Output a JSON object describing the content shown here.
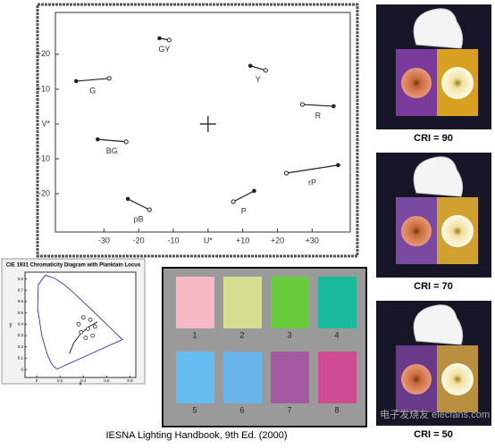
{
  "chart_data": [
    {
      "type": "vector",
      "xlim": [
        -44,
        41
      ],
      "ylim": [
        -31,
        32
      ],
      "xticks": [
        -30,
        -20,
        -10,
        {
          "value": 0,
          "label": "U*"
        },
        {
          "value": 10,
          "label": "+10"
        },
        {
          "value": 20,
          "label": "+20"
        },
        {
          "value": 30,
          "label": "+30"
        }
      ],
      "yticks": [
        -20,
        -10,
        {
          "value": 0,
          "label": "V*"
        },
        {
          "value": 10,
          "label": "+10"
        },
        {
          "value": 20,
          "label": "+20"
        }
      ],
      "vectors": [
        {
          "label": "GY",
          "x": [
            -14,
            -11.2
          ],
          "y": [
            24.6,
            24.1
          ]
        },
        {
          "label": "Y",
          "x": [
            12.2,
            16.6
          ],
          "y": [
            16.7,
            15.4
          ]
        },
        {
          "label": "G",
          "x": [
            -38,
            -28.5
          ],
          "y": [
            12.3,
            13.1
          ]
        },
        {
          "label": "R",
          "x": [
            36.2,
            27.2
          ],
          "y": [
            5.1,
            5.6
          ]
        },
        {
          "label": "BG",
          "x": [
            -31.8,
            -23.6
          ],
          "y": [
            -4.4,
            -5.1
          ]
        },
        {
          "label": "rP",
          "x": [
            37.5,
            22.6
          ],
          "y": [
            -11.8,
            -14.1
          ]
        },
        {
          "label": "pB",
          "x": [
            -23.1,
            -16.9
          ],
          "y": [
            -21.5,
            -24.6
          ]
        },
        {
          "label": "P",
          "x": [
            13.3,
            7.3
          ],
          "y": [
            -19.2,
            -22.3
          ]
        }
      ]
    },
    {
      "type": "cie",
      "title": "CIE 1931 Chromaticity Diagram with Planktain Locus",
      "xlabel": "x",
      "ylabel": "y",
      "xlim": [
        -0.1,
        0.85
      ],
      "ylim": [
        -0.07,
        0.86
      ],
      "xticks": [
        0,
        0.2,
        0.4,
        0.6,
        0.8
      ],
      "yticks": [
        0,
        0.1,
        0.2,
        0.3,
        0.4,
        0.5,
        0.6,
        0.7,
        0.8
      ],
      "locus": {
        "x": [
          0.175,
          0.144,
          0.124,
          0.091,
          0.045,
          0.008,
          0.014,
          0.074,
          0.155,
          0.23,
          0.302,
          0.444,
          0.575,
          0.735,
          0.175
        ],
        "y": [
          0.005,
          0.03,
          0.058,
          0.133,
          0.295,
          0.538,
          0.75,
          0.834,
          0.806,
          0.754,
          0.692,
          0.555,
          0.424,
          0.265,
          0.005
        ]
      },
      "planckian": {
        "x": [
          0.28,
          0.32,
          0.38,
          0.45,
          0.52
        ],
        "y": [
          0.14,
          0.24,
          0.32,
          0.38,
          0.42
        ]
      },
      "samples": {
        "x": [
          0.4,
          0.46,
          0.5,
          0.48,
          0.42,
          0.38,
          0.36,
          0.44
        ],
        "y": [
          0.46,
          0.44,
          0.38,
          0.3,
          0.28,
          0.33,
          0.4,
          0.36
        ]
      }
    }
  ],
  "swatches": [
    {
      "label": "1",
      "color": "#f5b8c4"
    },
    {
      "label": "2",
      "color": "#d6dc90"
    },
    {
      "label": "3",
      "color": "#66cc3a"
    },
    {
      "label": "4",
      "color": "#1abb9c"
    },
    {
      "label": "5",
      "color": "#66bdf2"
    },
    {
      "label": "6",
      "color": "#6ab4ec"
    },
    {
      "label": "7",
      "color": "#a45aa0"
    },
    {
      "label": "8",
      "color": "#cf4b92"
    }
  ],
  "photos": [
    {
      "label": "CRI = 90"
    },
    {
      "label": "CRI = 70"
    },
    {
      "label": "CRI = 50"
    }
  ],
  "caption": "IESNA Lighting Handbook, 9th Ed. (2000)",
  "watermark": "电子发烧友 elecfans.com"
}
